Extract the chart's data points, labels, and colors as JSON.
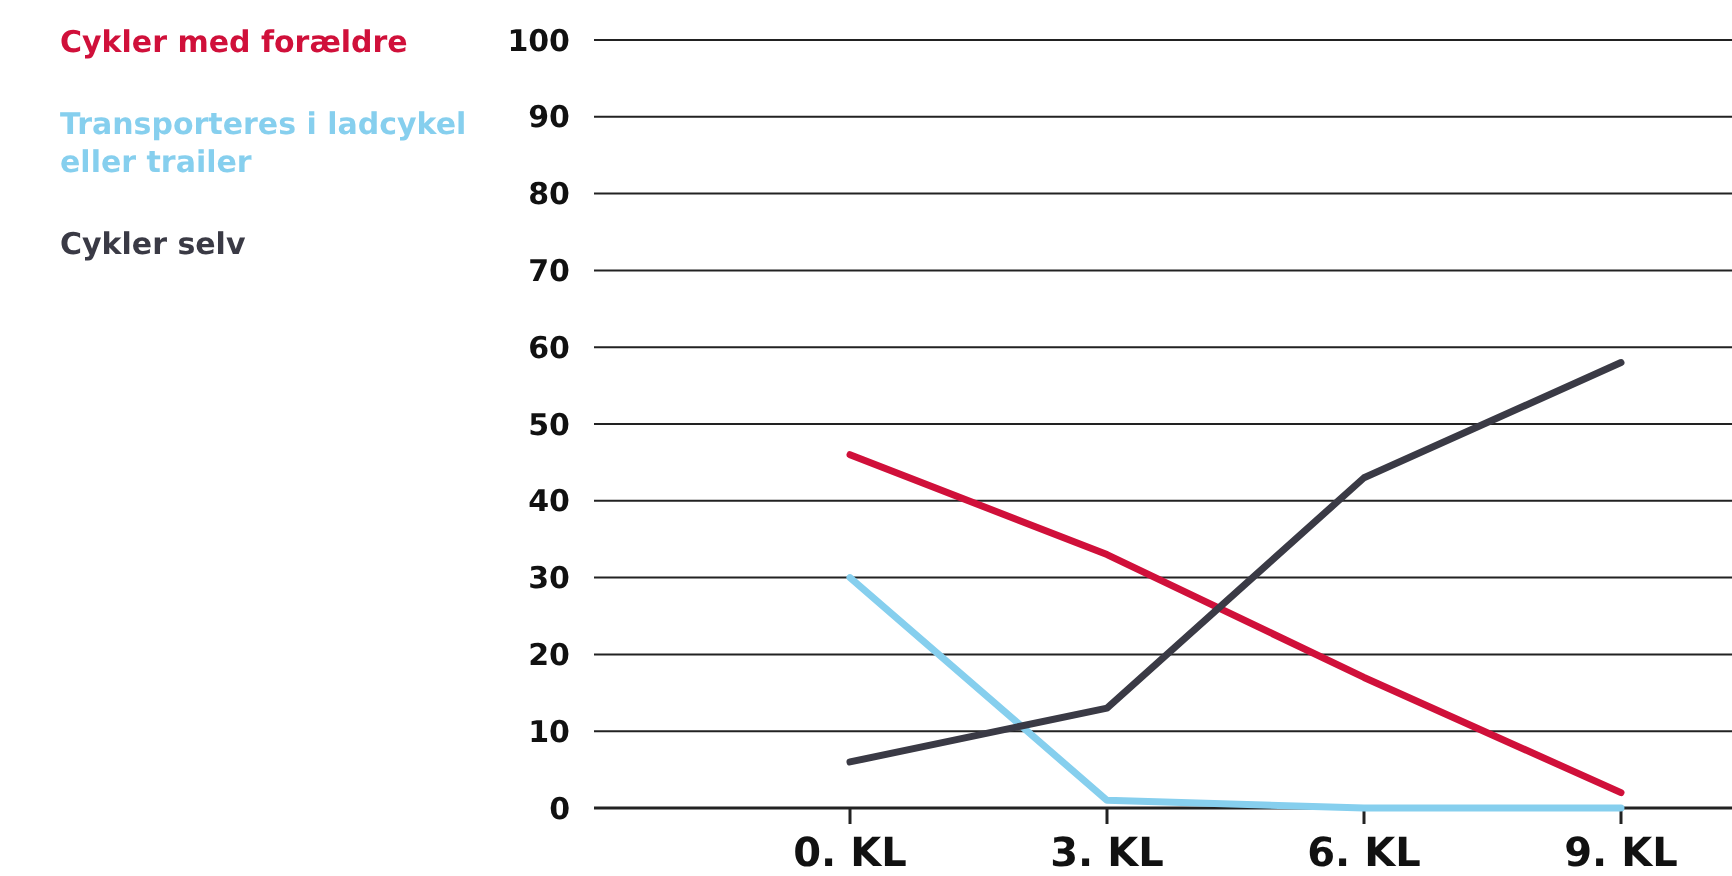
{
  "chart_data": {
    "type": "line",
    "categories": [
      "0. KL",
      "3. KL",
      "6. KL",
      "9. KL"
    ],
    "series": [
      {
        "name": "Cykler med forældre",
        "color": "#d0103a",
        "values": [
          46,
          33,
          17,
          2
        ]
      },
      {
        "name": "Transporteres i ladcykel eller trailer",
        "color": "#86cfee",
        "values": [
          30,
          1,
          0,
          0
        ]
      },
      {
        "name": "Cykler selv",
        "color": "#3a3a45",
        "values": [
          6,
          13,
          43,
          58
        ]
      }
    ],
    "ylim": [
      0,
      100
    ],
    "yticks": [
      0,
      10,
      20,
      30,
      40,
      50,
      60,
      70,
      80,
      90,
      100
    ],
    "grid": "y",
    "legend": "top left",
    "marker": "none",
    "line_style": "solid"
  }
}
